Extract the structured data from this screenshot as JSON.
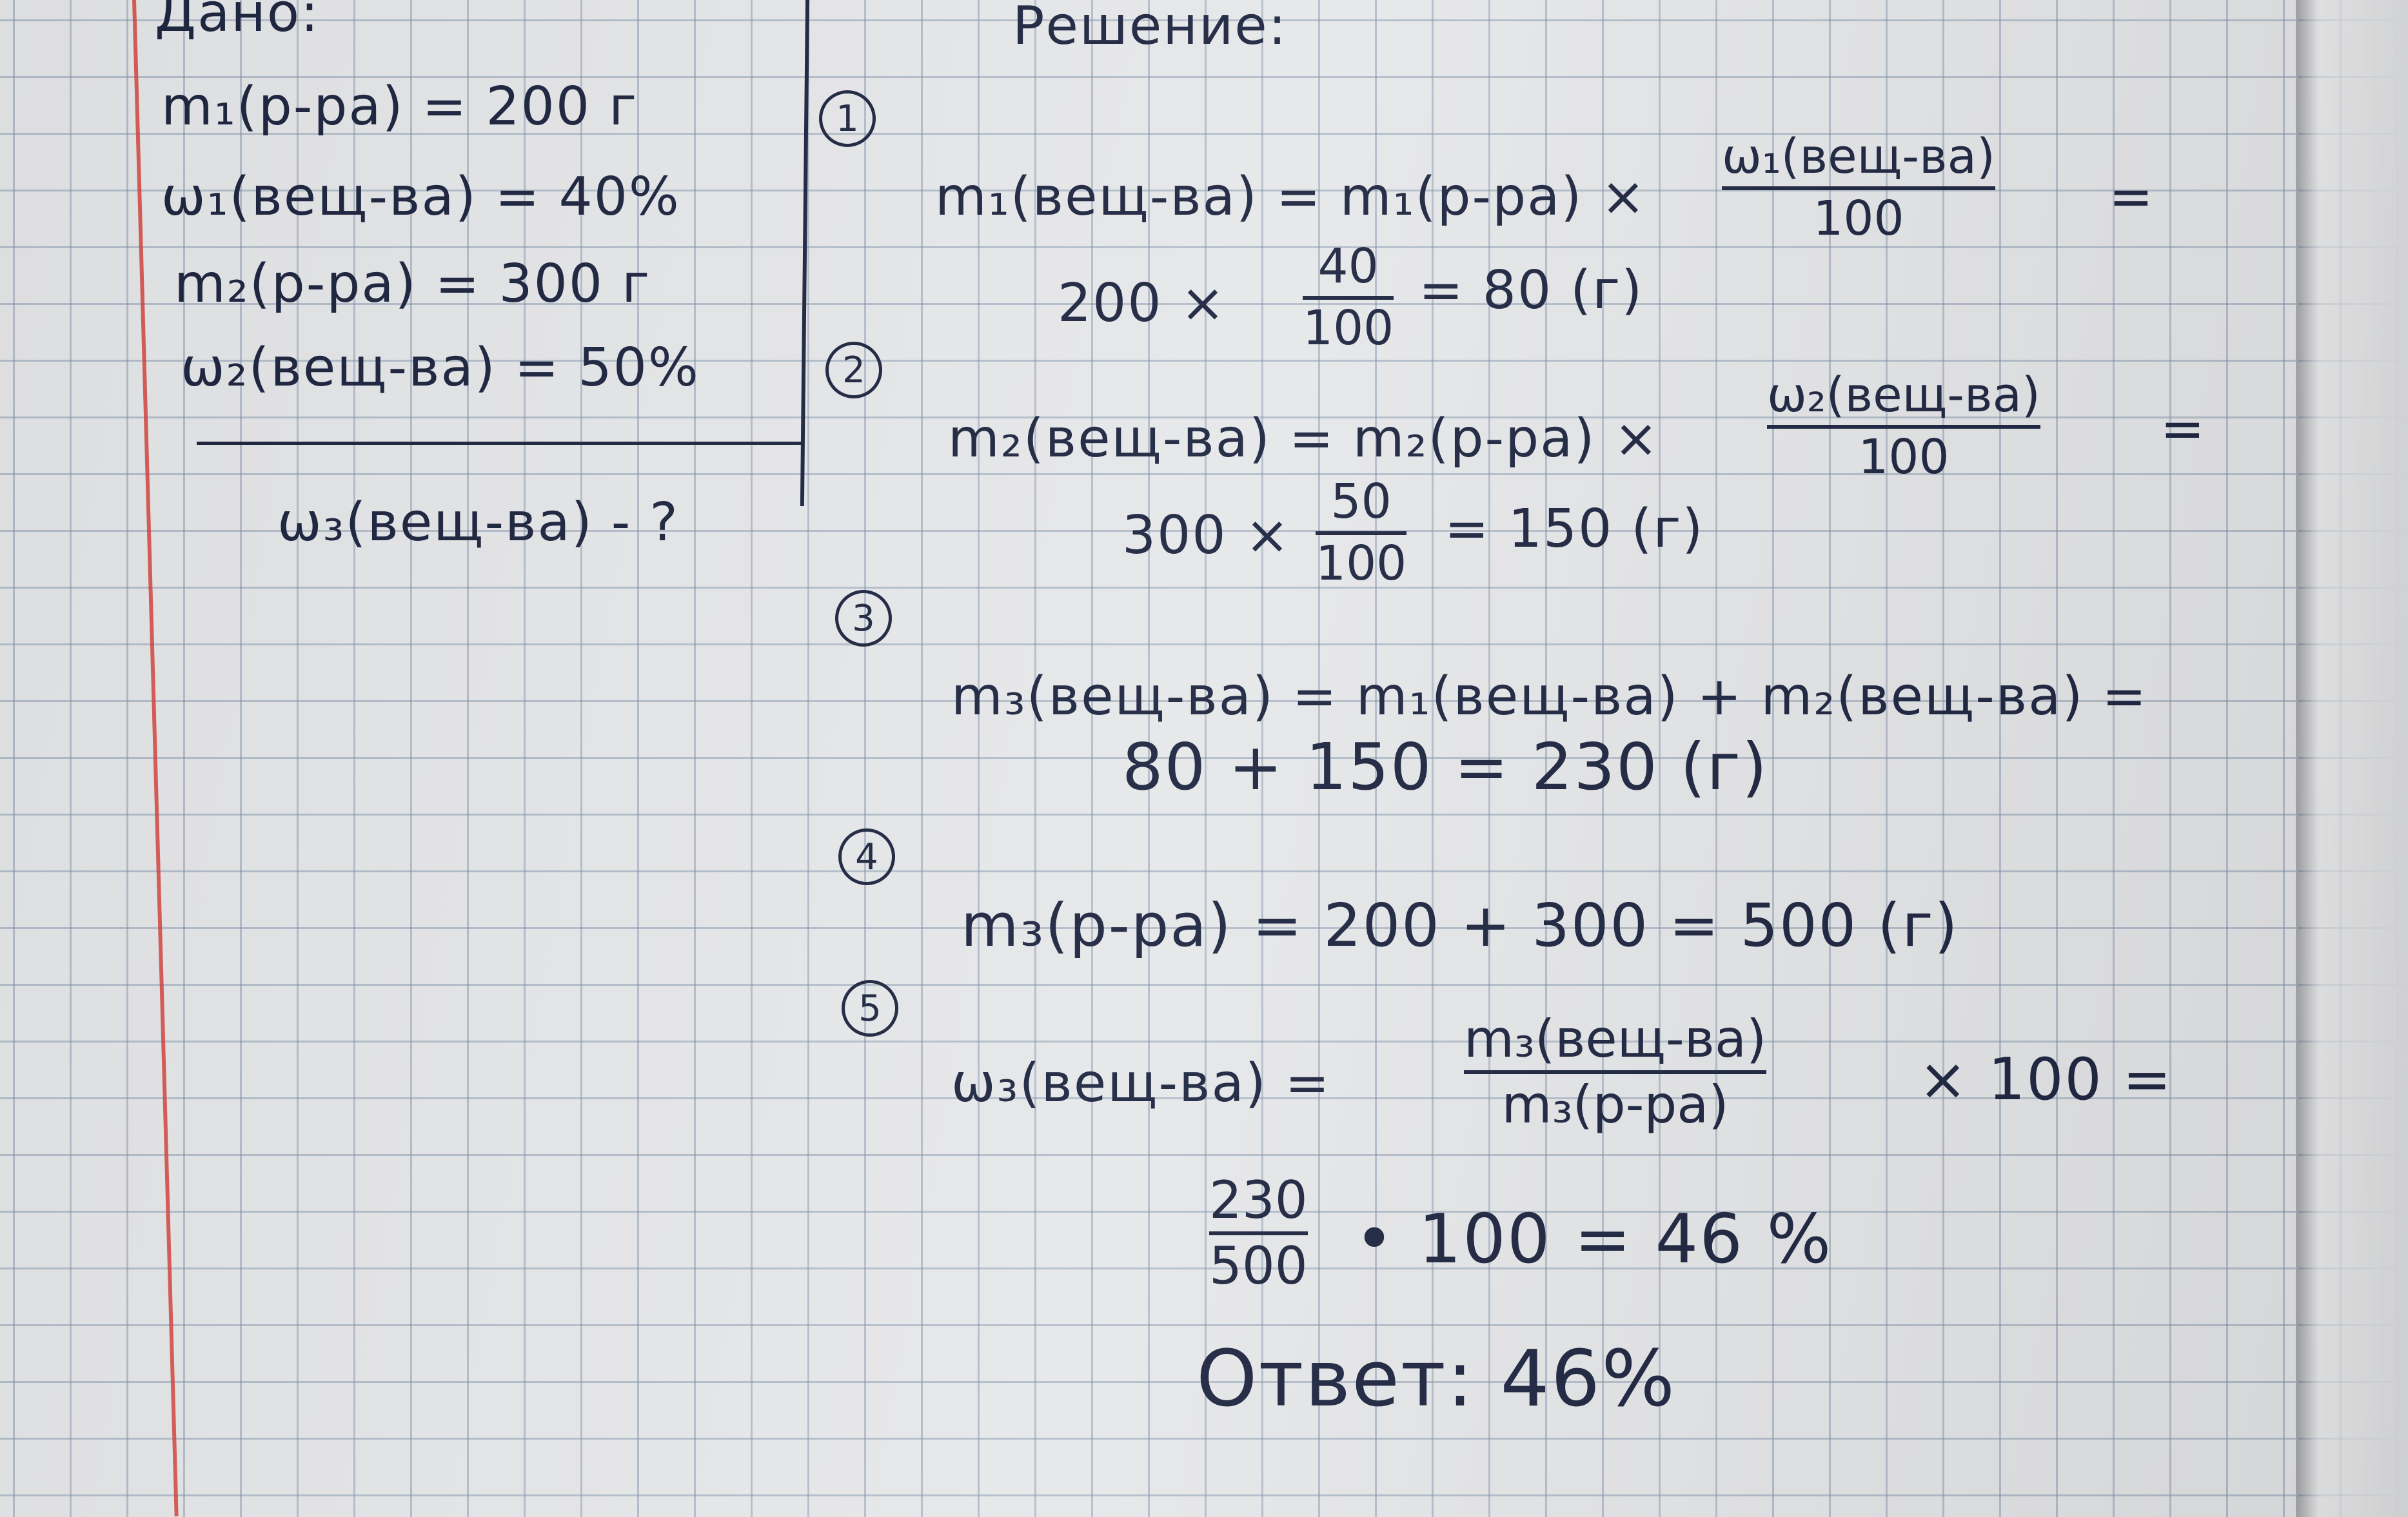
{
  "given": {
    "heading": "Дано:",
    "lines": [
      "m₁(р-ра) = 200 г",
      "ω₁(вещ-ва) = 40%",
      "m₂(р-ра) = 300 г",
      "ω₂(вещ-ва) = 50%"
    ],
    "find": "ω₃(вещ-ва) - ?"
  },
  "solution": {
    "heading": "Решение:",
    "steps": [
      {
        "num": "1",
        "lhs": "m₁(вещ-ва) = m₁(р-ра) ×",
        "frac_num": "ω₁(вещ-ва)",
        "frac_den": "100",
        "tail": "=",
        "calc_pre": "200 ×",
        "calc_num": "40",
        "calc_den": "100",
        "calc_post": "= 80 (г)"
      },
      {
        "num": "2",
        "lhs": "m₂(вещ-ва) = m₂(р-ра) ×",
        "frac_num": "ω₂(вещ-ва)",
        "frac_den": "100",
        "tail": "=",
        "calc_pre": "300 ×",
        "calc_num": "50",
        "calc_den": "100",
        "calc_post": "= 150 (г)"
      },
      {
        "num": "3",
        "line1": "m₃(вещ-ва) = m₁(вещ-ва) + m₂(вещ-ва) =",
        "line2": "80 + 150 = 230 (г)"
      },
      {
        "num": "4",
        "line1": "m₃(р-ра) = 200 + 300 = 500 (г)"
      },
      {
        "num": "5",
        "lhs": "ω₃(вещ-ва) =",
        "frac_num": "m₃(вещ-ва)",
        "frac_den": "m₃(р-ра)",
        "tail": "× 100 =",
        "calc_num": "230",
        "calc_den": "500",
        "calc_post": "• 100 = 46 %"
      }
    ],
    "answer": "Ответ: 46%"
  }
}
